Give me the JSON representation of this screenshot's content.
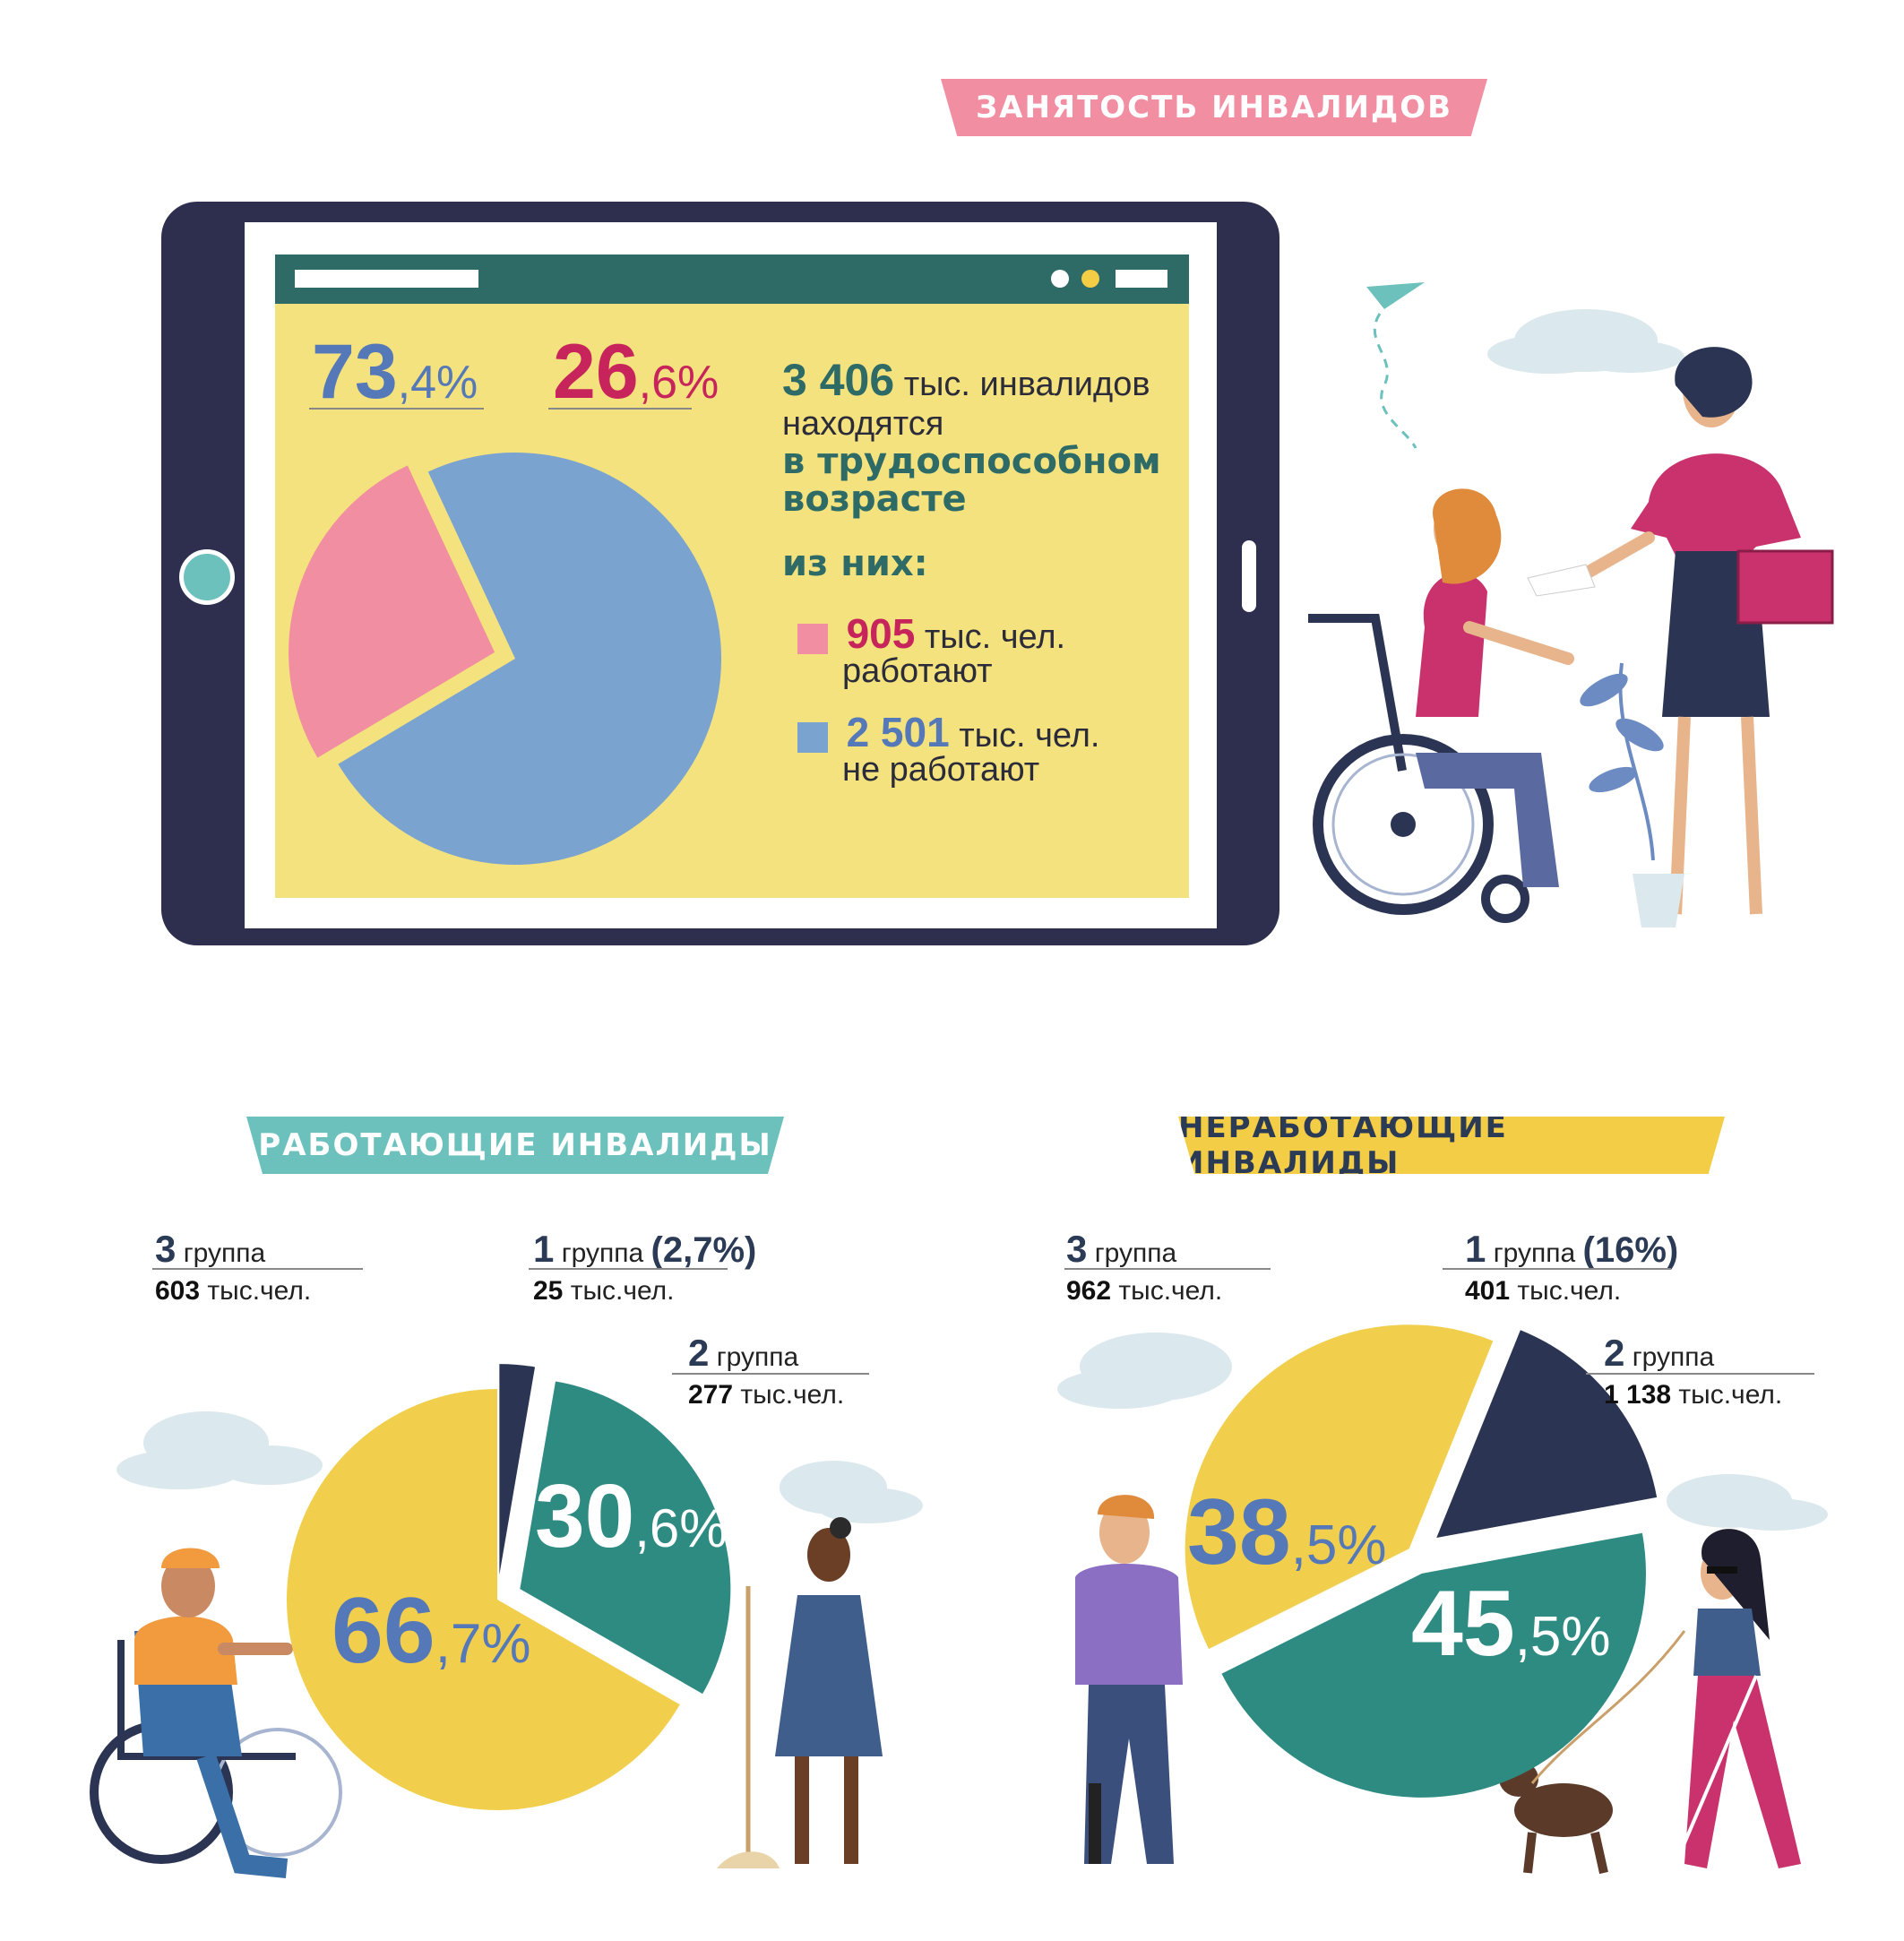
{
  "header": {
    "title": "ЗАНЯТОСТЬ ИНВАЛИДОВ"
  },
  "summary": {
    "total_value": "3 406",
    "total_text": "тыс. инвалидов",
    "line2": "находятся",
    "line3": "в трудоспособном",
    "line4": "возрасте",
    "of_them": "из них:",
    "working": {
      "value": "905",
      "unit": "тыс. чел.",
      "text": "работают",
      "color": "#f28ea2"
    },
    "not_working": {
      "value": "2 501",
      "unit": "тыс. чел.",
      "text": "не работают",
      "color": "#7aa3d0"
    }
  },
  "sections": {
    "working_title": "РАБОТАЮЩИЕ ИНВАЛИДЫ",
    "not_working_title": "НЕРАБОТАЮЩИЕ ИНВАЛИДЫ"
  },
  "chart_data": [
    {
      "type": "pie",
      "title": "",
      "categories": [
        "не работают",
        "работают"
      ],
      "values": [
        73.4,
        26.6
      ],
      "colors": [
        "#7aa3d0",
        "#f28ea2"
      ],
      "labels": [
        {
          "big": "73",
          "small": ",4%",
          "color": "#5578b8"
        },
        {
          "big": "26",
          "small": ",6%",
          "color": "#c7245b"
        }
      ]
    },
    {
      "type": "pie",
      "title": "РАБОТАЮЩИЕ ИНВАЛИДЫ",
      "categories": [
        "1 группа",
        "2 группа",
        "3 группа"
      ],
      "values": [
        2.7,
        30.6,
        66.7
      ],
      "absolute": [
        "25 тыс.чел.",
        "277 тыс.чел.",
        "603 тыс.чел."
      ],
      "colors": [
        "#2b3553",
        "#2e8b82",
        "#f1cf4c"
      ],
      "labels": [
        {
          "group_num": "1",
          "group_word": "группа",
          "pct_note": "(2,7%)",
          "abs_num": "25",
          "abs_unit": "тыс.чел."
        },
        {
          "group_num": "2",
          "group_word": "группа",
          "abs_num": "277",
          "abs_unit": "тыс.чел.",
          "big": "30",
          "small": ",6%"
        },
        {
          "group_num": "3",
          "group_word": "группа",
          "abs_num": "603",
          "abs_unit": "тыс.чел.",
          "big": "66",
          "small": ",7%"
        }
      ]
    },
    {
      "type": "pie",
      "title": "НЕРАБОТАЮЩИЕ ИНВАЛИДЫ",
      "categories": [
        "1 группа",
        "2 группа",
        "3 группа"
      ],
      "values": [
        16,
        45.5,
        38.5
      ],
      "absolute": [
        "401 тыс.чел.",
        "1 138 тыс.чел.",
        "962 тыс.чел."
      ],
      "colors": [
        "#2b3553",
        "#2e8b82",
        "#f1cf4c"
      ],
      "labels": [
        {
          "group_num": "1",
          "group_word": "группа",
          "pct_note": "(16%)",
          "abs_num": "401",
          "abs_unit": "тыс.чел."
        },
        {
          "group_num": "2",
          "group_word": "группа",
          "abs_num": "1 138",
          "abs_unit": "тыс.чел.",
          "big": "45",
          "small": ",5%"
        },
        {
          "group_num": "3",
          "group_word": "группа",
          "abs_num": "962",
          "abs_unit": "тыс.чел.",
          "big": "38",
          "small": ",5%"
        }
      ]
    }
  ]
}
